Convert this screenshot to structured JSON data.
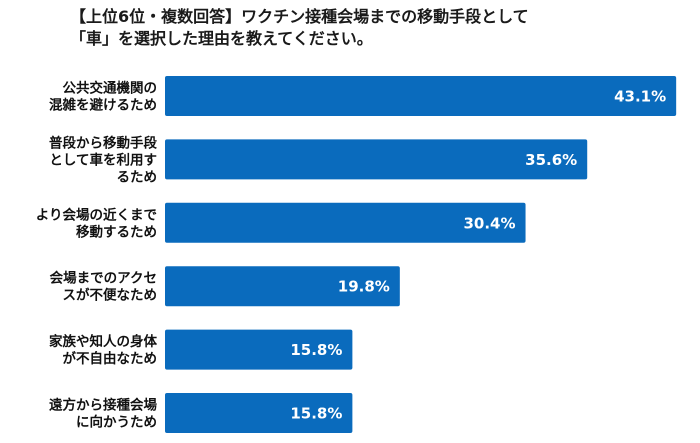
{
  "title_lines": [
    "【上位6位・複数回答】ワクチン接種会場までの移動手段として",
    "「車」を選択した理由を教えてください。"
  ],
  "chart_data": {
    "type": "bar",
    "orientation": "horizontal",
    "title": "【上位6位・複数回答】ワクチン接種会場までの移動手段として「車」を選択した理由を教えてください。",
    "categories": [
      [
        "公共交通機関の",
        "混雑を避けるため"
      ],
      [
        "普段から移動手段",
        "として車を利用す",
        "るため"
      ],
      [
        "より会場の近くまで",
        "移動するため"
      ],
      [
        "会場までのアクセ",
        "スが不便なため"
      ],
      [
        "家族や知人の身体",
        "が不自由なため"
      ],
      [
        "遠方から接種会場",
        "に向かうため"
      ]
    ],
    "values": [
      43.1,
      35.6,
      30.4,
      19.8,
      15.8,
      15.8
    ],
    "value_labels": [
      "43.1%",
      "35.6%",
      "30.4%",
      "19.8%",
      "15.8%",
      "15.8%"
    ],
    "unit": "%",
    "xlim": [
      0,
      45
    ],
    "grid": false,
    "legend": "none",
    "bar_color": "#0a6bbd",
    "label_color": "#ffffff"
  }
}
